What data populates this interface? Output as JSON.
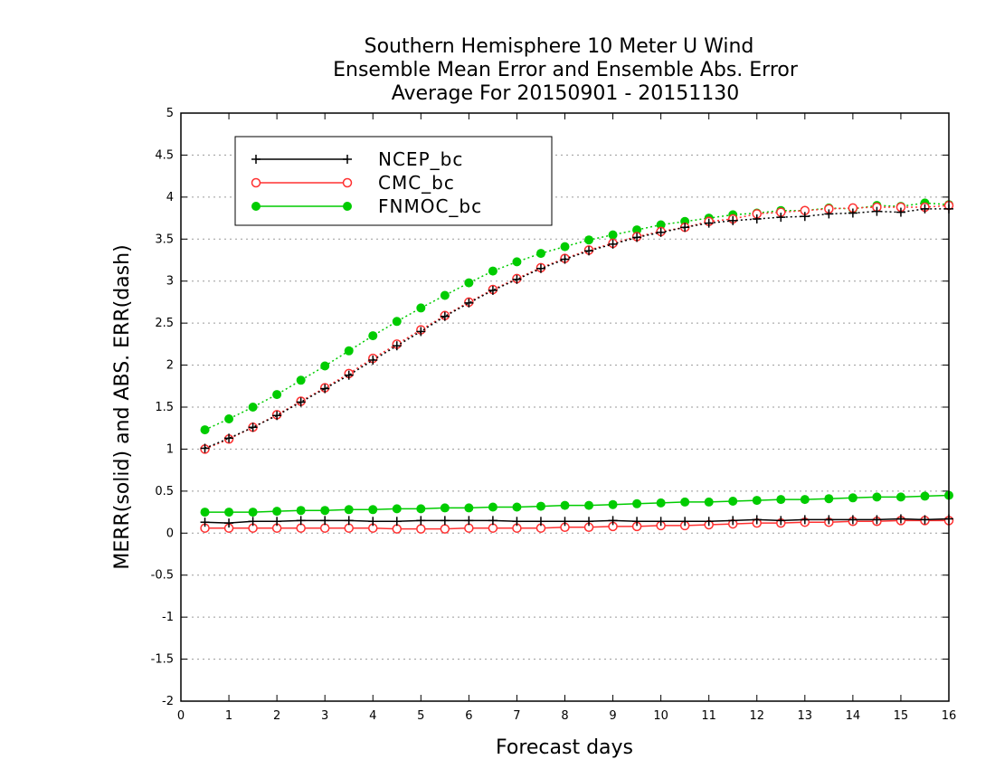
{
  "chart_data": {
    "type": "line",
    "title_lines": [
      "Southern Hemisphere 10 Meter U Wind",
      "Ensemble Mean Error and Ensemble Abs. Error",
      "Average For 20150901 - 20151130"
    ],
    "xlabel": "Forecast days",
    "ylabel": "MERR(solid) and ABS. ERR(dash)",
    "xlim": [
      0,
      16
    ],
    "ylim": [
      -2,
      5
    ],
    "x_ticks": [
      "0",
      "1",
      "2",
      "3",
      "4",
      "5",
      "6",
      "7",
      "8",
      "9",
      "10",
      "11",
      "12",
      "13",
      "14",
      "15",
      "16"
    ],
    "y_ticks": [
      "5",
      "4.5",
      "4",
      "3.5",
      "3",
      "2.5",
      "2",
      "1.5",
      "1",
      "0.5",
      "0",
      "-0.5",
      "-1",
      "-1.5",
      "-2"
    ],
    "grid": "horizontal dotted",
    "legend_placement": "top-left",
    "x": [
      0.5,
      1,
      1.5,
      2,
      2.5,
      3,
      3.5,
      4,
      4.5,
      5,
      5.5,
      6,
      6.5,
      7,
      7.5,
      8,
      8.5,
      9,
      9.5,
      10,
      10.5,
      11,
      11.5,
      12,
      12.5,
      13,
      13.5,
      14,
      14.5,
      15,
      15.5,
      16
    ],
    "series": [
      {
        "name": "NCEP_bc",
        "color": "#000000",
        "marker": "plus",
        "mean_error": [
          0.13,
          0.12,
          0.14,
          0.14,
          0.15,
          0.15,
          0.15,
          0.14,
          0.14,
          0.15,
          0.15,
          0.15,
          0.15,
          0.14,
          0.14,
          0.14,
          0.14,
          0.15,
          0.14,
          0.14,
          0.14,
          0.14,
          0.15,
          0.16,
          0.15,
          0.16,
          0.16,
          0.16,
          0.16,
          0.17,
          0.16,
          0.17
        ],
        "abs_error": [
          1.01,
          1.13,
          1.26,
          1.4,
          1.56,
          1.72,
          1.88,
          2.06,
          2.23,
          2.4,
          2.58,
          2.74,
          2.89,
          3.02,
          3.15,
          3.26,
          3.36,
          3.44,
          3.52,
          3.58,
          3.64,
          3.69,
          3.72,
          3.74,
          3.76,
          3.77,
          3.8,
          3.81,
          3.83,
          3.82,
          3.86,
          3.86
        ]
      },
      {
        "name": "CMC_bc",
        "color": "#ff3030",
        "marker": "open-circle",
        "mean_error": [
          0.06,
          0.06,
          0.06,
          0.06,
          0.06,
          0.06,
          0.06,
          0.06,
          0.05,
          0.05,
          0.05,
          0.06,
          0.06,
          0.06,
          0.06,
          0.07,
          0.07,
          0.08,
          0.08,
          0.09,
          0.09,
          0.1,
          0.11,
          0.12,
          0.12,
          0.13,
          0.13,
          0.14,
          0.14,
          0.15,
          0.15,
          0.15
        ],
        "abs_error": [
          1.0,
          1.12,
          1.26,
          1.41,
          1.57,
          1.73,
          1.9,
          2.08,
          2.25,
          2.42,
          2.59,
          2.75,
          2.9,
          3.03,
          3.16,
          3.27,
          3.37,
          3.45,
          3.53,
          3.59,
          3.64,
          3.71,
          3.74,
          3.8,
          3.82,
          3.84,
          3.86,
          3.87,
          3.88,
          3.88,
          3.88,
          3.9
        ]
      },
      {
        "name": "FNMOC_bc",
        "color": "#00cc00",
        "marker": "filled-circle",
        "mean_error": [
          0.25,
          0.25,
          0.25,
          0.26,
          0.27,
          0.27,
          0.28,
          0.28,
          0.29,
          0.29,
          0.3,
          0.3,
          0.31,
          0.31,
          0.32,
          0.33,
          0.33,
          0.34,
          0.35,
          0.36,
          0.37,
          0.37,
          0.38,
          0.39,
          0.4,
          0.4,
          0.41,
          0.42,
          0.43,
          0.43,
          0.44,
          0.45
        ],
        "abs_error": [
          1.23,
          1.36,
          1.5,
          1.65,
          1.82,
          1.99,
          2.17,
          2.35,
          2.52,
          2.68,
          2.83,
          2.98,
          3.12,
          3.23,
          3.33,
          3.41,
          3.49,
          3.55,
          3.61,
          3.67,
          3.71,
          3.75,
          3.79,
          3.81,
          3.84,
          3.84,
          3.87,
          3.86,
          3.9,
          3.89,
          3.93,
          3.91
        ]
      }
    ]
  }
}
